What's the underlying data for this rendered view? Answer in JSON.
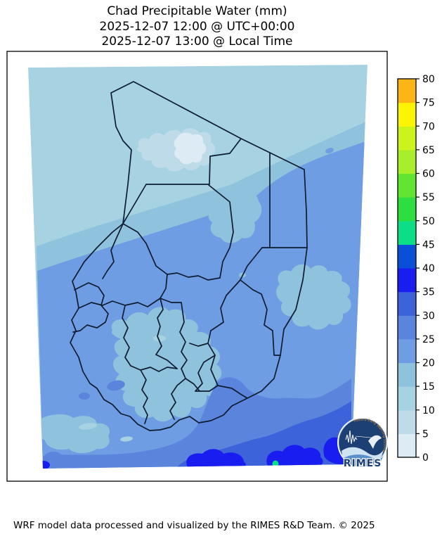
{
  "title": {
    "line1": "Chad Precipitable Water (mm)",
    "line2": "2025-12-07 12:00 @ UTC+00:00",
    "line3": "2025-12-07 13:00 @ Local Time"
  },
  "map": {
    "region_label": "Chad",
    "projection_note": "filled precipitable-water contours with province boundaries",
    "border_color": "#0d1c30",
    "band_colors": {
      "b0_5": "#dcebf4",
      "b5_10": "#bedbe9",
      "b10_15": "#a6d2e1",
      "b15_20": "#8fc2dc",
      "b20_25": "#6f9de3",
      "b25_30": "#5b85dc",
      "b30_35": "#3d63da",
      "b35_40": "#1a1df0",
      "b40_45": "#0a4fd8",
      "b45_50": "#0cdd87"
    }
  },
  "colorbar": {
    "unit": "mm",
    "min": 0,
    "max": 80,
    "tick_step": 5,
    "ticks": [
      0,
      5,
      10,
      15,
      20,
      25,
      30,
      35,
      40,
      45,
      50,
      55,
      60,
      65,
      70,
      75,
      80
    ],
    "segment_colors_bottom_to_top": [
      "#dcebf4",
      "#bedbe9",
      "#a6d2e1",
      "#8fc2dc",
      "#6f9de3",
      "#5b85dc",
      "#3d63da",
      "#1a1df0",
      "#0a4fd8",
      "#0cdd87",
      "#2ede40",
      "#63e431",
      "#a8ee2a",
      "#cdf31c",
      "#fdf403",
      "#fdb515"
    ]
  },
  "logo": {
    "ring_text": "Hazard Early Warning System",
    "wordmark": "RIMES"
  },
  "footer": {
    "credit": "WRF model data processed and visualized by the RIMES R&D Team. © 2025"
  }
}
